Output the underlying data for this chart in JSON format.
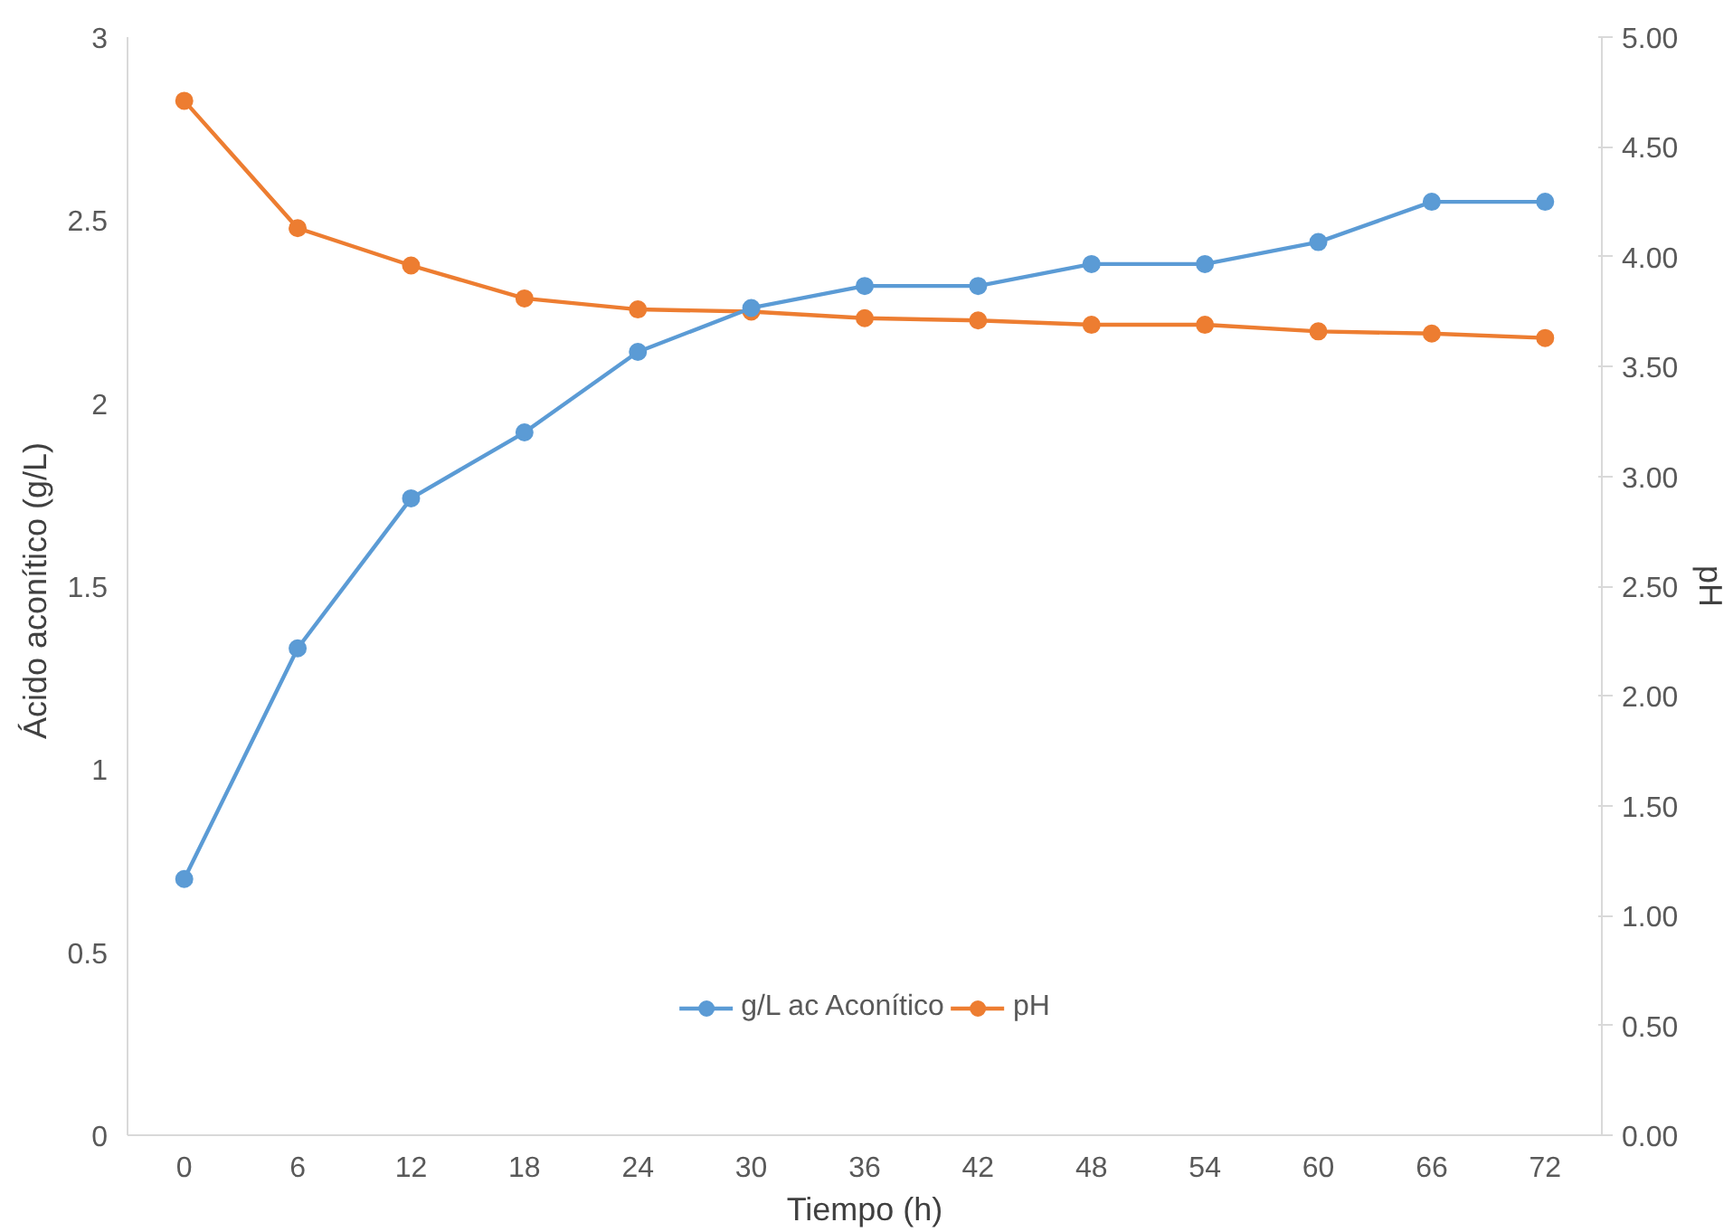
{
  "chart_data": {
    "type": "line",
    "xlabel": "Tiempo (h)",
    "ylabel": "Ácido aconítico  (g/L)",
    "y2label": "pH",
    "categories": [
      "0",
      "6",
      "12",
      "18",
      "24",
      "30",
      "36",
      "42",
      "48",
      "54",
      "60",
      "66",
      "72"
    ],
    "series": [
      {
        "name": "g/L ac Aconítico",
        "color": "#5b9bd5",
        "values": [
          0.7,
          1.33,
          1.74,
          1.92,
          2.14,
          2.26,
          2.32,
          2.32,
          2.38,
          2.38,
          2.44,
          2.55,
          2.55
        ]
      },
      {
        "name": "pH",
        "color": "#ed7d31",
        "axis": "y2",
        "values": [
          4.71,
          4.13,
          3.96,
          3.81,
          3.76,
          3.75,
          3.72,
          3.71,
          3.69,
          3.69,
          3.66,
          3.65,
          3.63
        ]
      }
    ],
    "ylim": [
      0,
      3
    ],
    "yticks": [
      0,
      0.5,
      1,
      1.5,
      2,
      2.5,
      3
    ],
    "y2lim": [
      0,
      5
    ],
    "y2ticks": [
      {
        "value": 0,
        "label": "0.00"
      },
      {
        "value": 0.5,
        "label": "0.50"
      },
      {
        "value": 1,
        "label": "1.00"
      },
      {
        "value": 1.5,
        "label": "1.50"
      },
      {
        "value": 2,
        "label": "2.00"
      },
      {
        "value": 2.5,
        "label": "2.50"
      },
      {
        "value": 3,
        "label": "3.00"
      },
      {
        "value": 3.5,
        "label": "3.50"
      },
      {
        "value": 4,
        "label": "4.00"
      },
      {
        "value": 4.5,
        "label": "4.50"
      },
      {
        "value": 5,
        "label": "5.00"
      }
    ],
    "grid": false,
    "legend": "bottom",
    "marker": "circle",
    "line_style": "solid"
  }
}
